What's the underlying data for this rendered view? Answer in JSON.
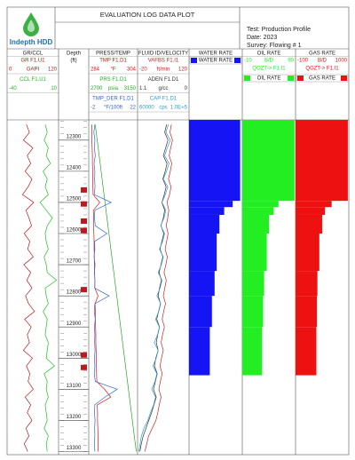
{
  "header": {
    "logo": "Indepth HDD",
    "title": "EVALUATION LOG DATA PLOT",
    "info": [
      "Test: Production Profile",
      "Date: 2023",
      "Survey: Flowing # 1"
    ]
  },
  "chart_data": {
    "type": "log",
    "ylim": [
      12235,
      13310
    ],
    "depth": [
      12250,
      12275,
      12300,
      12325,
      12350,
      12375,
      12400,
      12425,
      12450,
      12475,
      12500,
      12525,
      12550,
      12575,
      12600,
      12625,
      12650,
      12675,
      12700,
      12725,
      12750,
      12775,
      12800,
      12825,
      12850,
      12875,
      12900,
      12925,
      12950,
      12975,
      13000,
      13025,
      13050,
      13075,
      13100,
      13125,
      13150,
      13175,
      13200,
      13225,
      13250,
      13275,
      13300
    ],
    "tracks": [
      {
        "type": "line",
        "title": "GR/CCL",
        "series": [
          {
            "name": "GR  F1.U1",
            "unit": "GAPI",
            "xlim": [
              0,
              120
            ],
            "color": "#c01818",
            "values": [
              45,
              52,
              38,
              60,
              47,
              55,
              42,
              58,
              49,
              36,
              62,
              44,
              51,
              57,
              40,
              53,
              48,
              61,
              39,
              55,
              46,
              58,
              43,
              50,
              64,
              41,
              56,
              47,
              52,
              38,
              59,
              45,
              53,
              49,
              61,
              42,
              55,
              47,
              58,
              44,
              51,
              40,
              48
            ]
          },
          {
            "name": "CCL  F1.U1",
            "xlim": [
              -40,
              10
            ],
            "color": "#22bb22",
            "values": [
              -3,
              -1,
              -4,
              0,
              -2,
              2,
              -5,
              -1,
              -3,
              0,
              -8,
              -2,
              4,
              -1,
              -3,
              -2,
              0,
              -4,
              -2,
              -1,
              8,
              -3,
              -2,
              0,
              -5,
              -1,
              -2,
              -3,
              0,
              -1,
              -2,
              6,
              -4,
              -1,
              -2,
              0,
              -3,
              -2,
              -1,
              -4,
              0,
              -2,
              -1
            ]
          }
        ]
      },
      {
        "type": "depth",
        "title": "Depth",
        "subtitle": "(ft)",
        "yticks": [
          12300,
          12400,
          12500,
          12600,
          12700,
          12800,
          12900,
          13000,
          13100,
          13200,
          13300
        ],
        "perforations": [
          12460,
          12505,
          12560,
          12590,
          12780,
          12990,
          13030
        ]
      },
      {
        "type": "line",
        "title": "PRESS/TEMP",
        "series": [
          {
            "name": "TMP  F1.D1",
            "unit": "°F",
            "xlim": [
              284,
              304
            ],
            "color": "#dd1111",
            "values": [
              285.2,
              285.3,
              285.3,
              285.4,
              285.5,
              285.5,
              285.6,
              285.6,
              285.7,
              285.8,
              288.5,
              285.9,
              286.0,
              286.0,
              286.1,
              286.2,
              286.2,
              286.3,
              286.3,
              286.4,
              286.5,
              286.5,
              287.8,
              286.6,
              286.7,
              286.7,
              286.8,
              286.9,
              286.9,
              287.0,
              287.1,
              287.1,
              287.2,
              287.3,
              290.5,
              293.0,
              287.5,
              287.6,
              287.6,
              287.7,
              287.8,
              287.8,
              287.9
            ]
          },
          {
            "name": "PRS  F1.D1",
            "unit": "psia",
            "xlim": [
              2700,
              3150
            ],
            "color": "#22aa22",
            "values": [
              2760,
              2769,
              2778,
              2787,
              2796,
              2805,
              2814,
              2823,
              2832,
              2841,
              2850,
              2859,
              2868,
              2877,
              2886,
              2895,
              2904,
              2913,
              2922,
              2931,
              2940,
              2949,
              2958,
              2967,
              2976,
              2985,
              2994,
              3003,
              3012,
              3021,
              3030,
              3039,
              3048,
              3057,
              3066,
              3075,
              3084,
              3093,
              3102,
              3111,
              3120,
              3129,
              3138
            ]
          },
          {
            "name": "TMP_DER  F1.D1",
            "unit": "°F/100ft",
            "xlim": [
              -2,
              22
            ],
            "color": "#3366cc",
            "values": [
              1,
              0.5,
              1,
              0.8,
              1.2,
              0.6,
              1,
              0.9,
              1.1,
              0.7,
              9,
              1,
              0.8,
              1.2,
              7,
              0.9,
              1,
              0.6,
              1.1,
              0.8,
              1,
              0.9,
              8,
              1,
              0.7,
              1.2,
              0.8,
              1,
              0.9,
              1.1,
              0.8,
              1,
              0.7,
              1.2,
              12,
              6,
              1,
              0.8,
              1.1,
              0.9,
              1,
              0.8,
              1
            ]
          }
        ]
      },
      {
        "type": "line",
        "title": "FLUID ID/VELOCITY",
        "series": [
          {
            "name": "VAFBS  F1.I1",
            "unit": "ft/min",
            "xlim": [
              -20,
              120
            ],
            "color": "#cc2222",
            "values": [
              72,
              68,
              75,
              70,
              66,
              73,
              69,
              64,
              71,
              67,
              60,
              65,
              62,
              58,
              63,
              59,
              55,
              61,
              57,
              52,
              58,
              54,
              50,
              56,
              51,
              47,
              53,
              48,
              44,
              50,
              45,
              41,
              47,
              42,
              38,
              44,
              39,
              35,
              30,
              20,
              10,
              5,
              0
            ]
          },
          {
            "name": "ADEN  F1.D1",
            "unit": "g/cc",
            "xlim": [
              1.1,
              0
            ],
            "color": "#333333",
            "values": [
              0.48,
              0.52,
              0.45,
              0.5,
              0.55,
              0.47,
              0.51,
              0.56,
              0.49,
              0.53,
              0.58,
              0.52,
              0.55,
              0.6,
              0.54,
              0.58,
              0.62,
              0.56,
              0.6,
              0.64,
              0.59,
              0.63,
              0.66,
              0.61,
              0.65,
              0.69,
              0.63,
              0.67,
              0.7,
              0.66,
              0.71,
              0.74,
              0.68,
              0.72,
              0.76,
              0.7,
              0.75,
              0.8,
              0.86,
              0.92,
              0.98,
              1.02,
              1.05
            ]
          },
          {
            "name": "CAP  F1.D1",
            "unit": "cps",
            "xlim": [
              60000,
              {
                "value": 100000,
                "label": "1.0E+5"
              }
            ],
            "color": "#3399cc",
            "values": [
              84000,
              82000,
              85500,
              83000,
              81000,
              84500,
              82500,
              80000,
              83500,
              81500,
              79000,
              82000,
              80500,
              78000,
              81000,
              79500,
              77000,
              80000,
              78500,
              76000,
              79000,
              77500,
              75000,
              78000,
              76500,
              74000,
              77000,
              75500,
              73000,
              76000,
              74500,
              72000,
              75000,
              73500,
              71000,
              74000,
              72500,
              70000,
              68000,
              65000,
              63000,
              62000,
              61000
            ]
          }
        ]
      },
      {
        "type": "histogram",
        "title": "WATER RATE",
        "bins": [
          12235,
          12495,
          12515,
          12540,
          12600,
          12720,
          12800,
          12900,
          13055
        ],
        "series": [
          {
            "legend": "WATER RATE",
            "xlim": [
              0,
              100
            ],
            "color": "#1414f5",
            "values": [
              96,
              82,
              66,
              57,
              52,
              48,
              43,
              39
            ]
          }
        ]
      },
      {
        "type": "histogram",
        "title": "OIL RATE",
        "bins": [
          12235,
          12495,
          12515,
          12540,
          12600,
          12720,
          12800,
          12900,
          13055
        ],
        "series": [
          {
            "name": "QOZT-> F1.I1",
            "legend": "OIL RATE",
            "unit": "B/D",
            "xlim": [
              -10,
              90
            ],
            "color": "#22ee22",
            "values": [
              88,
              58,
              49,
              40,
              36,
              31,
              29,
              27
            ]
          }
        ]
      },
      {
        "type": "histogram",
        "title": "GAS RATE",
        "bins": [
          12235,
          12495,
          12515,
          12540,
          12600,
          12720,
          12800,
          12900,
          13055
        ],
        "series": [
          {
            "name": "QGZT-> F1.I1",
            "legend": "GAS RATE",
            "unit": "B/D",
            "xlim": [
              -100,
              1000
            ],
            "color": "#ee1111",
            "values": [
              980,
              646,
              509,
              450,
              391,
              352,
              340,
              330
            ]
          }
        ]
      }
    ]
  }
}
